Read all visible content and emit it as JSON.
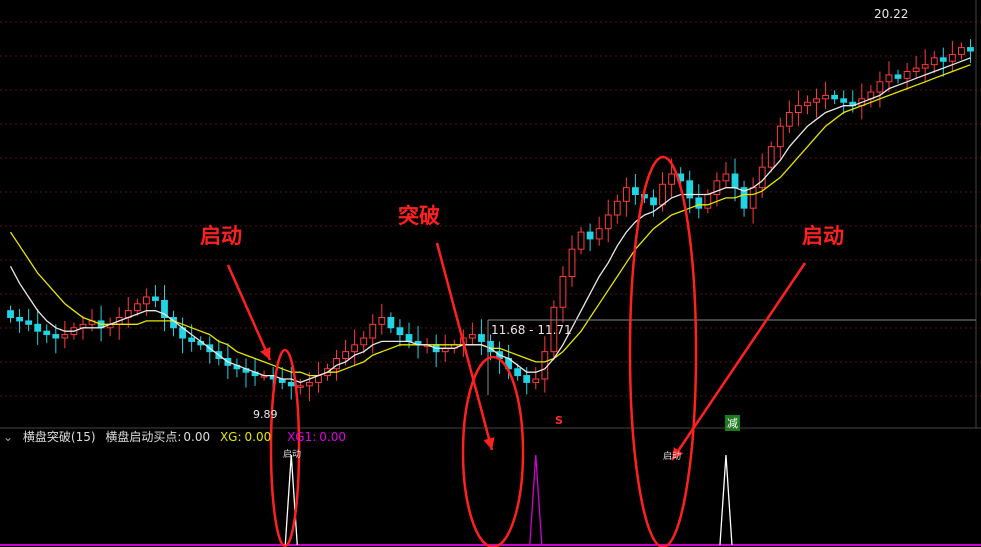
{
  "indicator": {
    "name": "横盘突破(15)",
    "buy_label": "横盘启动买点:",
    "buy_value": "0.00",
    "xg_label": "XG:",
    "xg_value": "0.00",
    "xg1_label": "XG1:",
    "xg1_value": "0.00"
  },
  "annotations": {
    "start1": "启动",
    "breakout": "突破",
    "start2": "启动"
  },
  "price_labels": {
    "high": "20.22",
    "low": "9.89",
    "crosshair": "11.68 - 11.71"
  },
  "signals": {
    "s_mark": "S",
    "jian": "减",
    "peak1_label": "启动",
    "peak3_label": "启动"
  },
  "colors": {
    "up": "#ff3b3b",
    "down": "#20d4e4",
    "ma_white": "#e8e8e8",
    "ma_yellow": "#e6e600",
    "grid": "#5a1010",
    "annotation": "#ff2020",
    "indicator_line": "#d000d0"
  },
  "chart_data": {
    "type": "candlestick",
    "price_range": [
      9,
      21
    ],
    "closes": [
      12.0,
      11.9,
      11.8,
      11.6,
      11.5,
      11.4,
      11.5,
      11.7,
      11.8,
      11.9,
      11.7,
      11.8,
      12.0,
      12.2,
      12.4,
      12.6,
      12.5,
      12.0,
      11.7,
      11.4,
      11.3,
      11.2,
      11.0,
      10.8,
      10.6,
      10.5,
      10.4,
      10.3,
      10.3,
      10.2,
      10.1,
      10.0,
      10.0,
      10.1,
      10.3,
      10.5,
      10.8,
      11.0,
      11.2,
      11.4,
      11.8,
      12.0,
      11.7,
      11.5,
      11.3,
      11.2,
      11.2,
      11.0,
      11.1,
      11.2,
      11.4,
      11.5,
      11.3,
      11.0,
      10.8,
      10.5,
      10.3,
      10.1,
      10.2,
      11.0,
      12.3,
      13.2,
      14.0,
      14.5,
      14.3,
      14.6,
      15.0,
      15.4,
      15.8,
      15.6,
      15.5,
      15.3,
      15.9,
      16.2,
      16.0,
      15.5,
      15.2,
      15.6,
      16.0,
      16.2,
      15.8,
      15.2,
      15.8,
      16.4,
      17.0,
      17.6,
      18.0,
      18.2,
      18.3,
      18.4,
      18.5,
      18.4,
      18.3,
      18.2,
      18.4,
      18.6,
      18.9,
      19.1,
      19.0,
      19.2,
      19.3,
      19.4,
      19.6,
      19.5,
      19.7,
      19.9,
      19.8
    ],
    "ma_white": [
      13.5,
      13.0,
      12.6,
      12.2,
      11.9,
      11.7,
      11.6,
      11.6,
      11.7,
      11.7,
      11.7,
      11.8,
      11.9,
      12.0,
      12.1,
      12.2,
      12.2,
      12.1,
      11.9,
      11.7,
      11.5,
      11.3,
      11.1,
      10.9,
      10.7,
      10.6,
      10.5,
      10.4,
      10.3,
      10.3,
      10.2,
      10.2,
      10.1,
      10.2,
      10.3,
      10.4,
      10.6,
      10.7,
      10.9,
      11.0,
      11.2,
      11.3,
      11.3,
      11.3,
      11.3,
      11.2,
      11.2,
      11.1,
      11.1,
      11.1,
      11.2,
      11.2,
      11.2,
      11.1,
      10.9,
      10.8,
      10.6,
      10.4,
      10.4,
      10.5,
      10.8,
      11.2,
      11.7,
      12.2,
      12.7,
      13.2,
      13.6,
      14.1,
      14.5,
      14.8,
      15.0,
      15.1,
      15.3,
      15.5,
      15.6,
      15.6,
      15.6,
      15.6,
      15.7,
      15.8,
      15.8,
      15.7,
      15.8,
      16.0,
      16.3,
      16.6,
      17.0,
      17.3,
      17.6,
      17.8,
      18.0,
      18.1,
      18.2,
      18.2,
      18.3,
      18.4,
      18.5,
      18.7,
      18.8,
      18.9,
      19.0,
      19.1,
      19.2,
      19.3,
      19.4,
      19.5,
      19.6
    ],
    "ma_yellow": [
      14.5,
      14.1,
      13.7,
      13.3,
      13.0,
      12.7,
      12.4,
      12.2,
      12.0,
      11.9,
      11.8,
      11.8,
      11.8,
      11.8,
      11.8,
      11.9,
      11.9,
      11.9,
      11.9,
      11.8,
      11.7,
      11.6,
      11.5,
      11.3,
      11.2,
      11.0,
      10.9,
      10.8,
      10.7,
      10.6,
      10.5,
      10.4,
      10.4,
      10.3,
      10.3,
      10.4,
      10.4,
      10.5,
      10.6,
      10.7,
      10.9,
      11.0,
      11.1,
      11.2,
      11.2,
      11.2,
      11.2,
      11.2,
      11.2,
      11.2,
      11.2,
      11.2,
      11.2,
      11.1,
      11.1,
      11.0,
      10.9,
      10.8,
      10.7,
      10.7,
      10.8,
      11.0,
      11.3,
      11.6,
      12.0,
      12.4,
      12.8,
      13.2,
      13.6,
      14.0,
      14.3,
      14.6,
      14.8,
      15.0,
      15.1,
      15.2,
      15.3,
      15.3,
      15.4,
      15.5,
      15.5,
      15.6,
      15.6,
      15.7,
      15.9,
      16.1,
      16.4,
      16.7,
      17.0,
      17.3,
      17.6,
      17.8,
      18.0,
      18.1,
      18.2,
      18.3,
      18.4,
      18.5,
      18.6,
      18.7,
      18.8,
      18.9,
      19.0,
      19.1,
      19.2,
      19.3,
      19.4
    ],
    "indicator_peaks": [
      {
        "index": 31,
        "value": 1,
        "color": "#ffffff"
      },
      {
        "index": 58,
        "value": 1,
        "color": "#d000d0"
      },
      {
        "index": 79,
        "value": 1,
        "color": "#ffffff"
      }
    ]
  }
}
